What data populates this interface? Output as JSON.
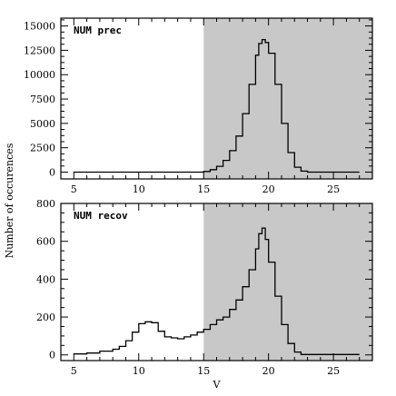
{
  "chart_data": [
    {
      "type": "histogram",
      "label": "NUM prec",
      "xlim": [
        4,
        28
      ],
      "ylim": [
        -700,
        15800
      ],
      "xticks": [
        5,
        10,
        15,
        20,
        25
      ],
      "yticks": [
        0,
        2500,
        5000,
        7500,
        10000,
        12500,
        15000
      ],
      "shaded_region": [
        15,
        28
      ],
      "x": [
        5,
        14.5,
        15,
        15.5,
        16,
        16.5,
        17,
        17.5,
        18,
        18.5,
        19,
        19.25,
        19.5,
        19.75,
        20,
        20.5,
        21,
        21.5,
        22,
        22.5,
        23,
        27
      ],
      "y": [
        0,
        0,
        60,
        250,
        600,
        1200,
        2200,
        3700,
        6000,
        9000,
        12000,
        13200,
        13600,
        13300,
        12200,
        9000,
        5000,
        2000,
        500,
        100,
        0,
        0
      ]
    },
    {
      "type": "histogram",
      "label": "NUM recov",
      "xlim": [
        4,
        28
      ],
      "ylim": [
        -30,
        800
      ],
      "xticks": [
        5,
        10,
        15,
        20,
        25
      ],
      "yticks": [
        0,
        200,
        400,
        600,
        800
      ],
      "shaded_region": [
        15,
        28
      ],
      "xlabel": "V",
      "x": [
        5,
        6,
        7,
        8,
        8.5,
        9,
        9.5,
        10,
        10.5,
        11,
        11.5,
        12,
        12.5,
        13,
        13.5,
        14,
        14.5,
        15,
        15.5,
        16,
        16.5,
        17,
        17.5,
        18,
        18.5,
        19,
        19.25,
        19.5,
        19.75,
        20,
        20.5,
        21,
        21.5,
        22,
        22.5,
        27
      ],
      "y": [
        5,
        10,
        20,
        30,
        45,
        75,
        120,
        165,
        175,
        170,
        125,
        95,
        90,
        85,
        95,
        105,
        120,
        135,
        160,
        185,
        200,
        240,
        290,
        360,
        450,
        560,
        640,
        670,
        610,
        490,
        310,
        160,
        60,
        15,
        2,
        2
      ]
    }
  ],
  "shared_ylabel": "Number of occurences",
  "colors": {
    "shade": "#c8c8c8",
    "line": "#000000",
    "frame": "#000000",
    "background": "#ffffff"
  }
}
